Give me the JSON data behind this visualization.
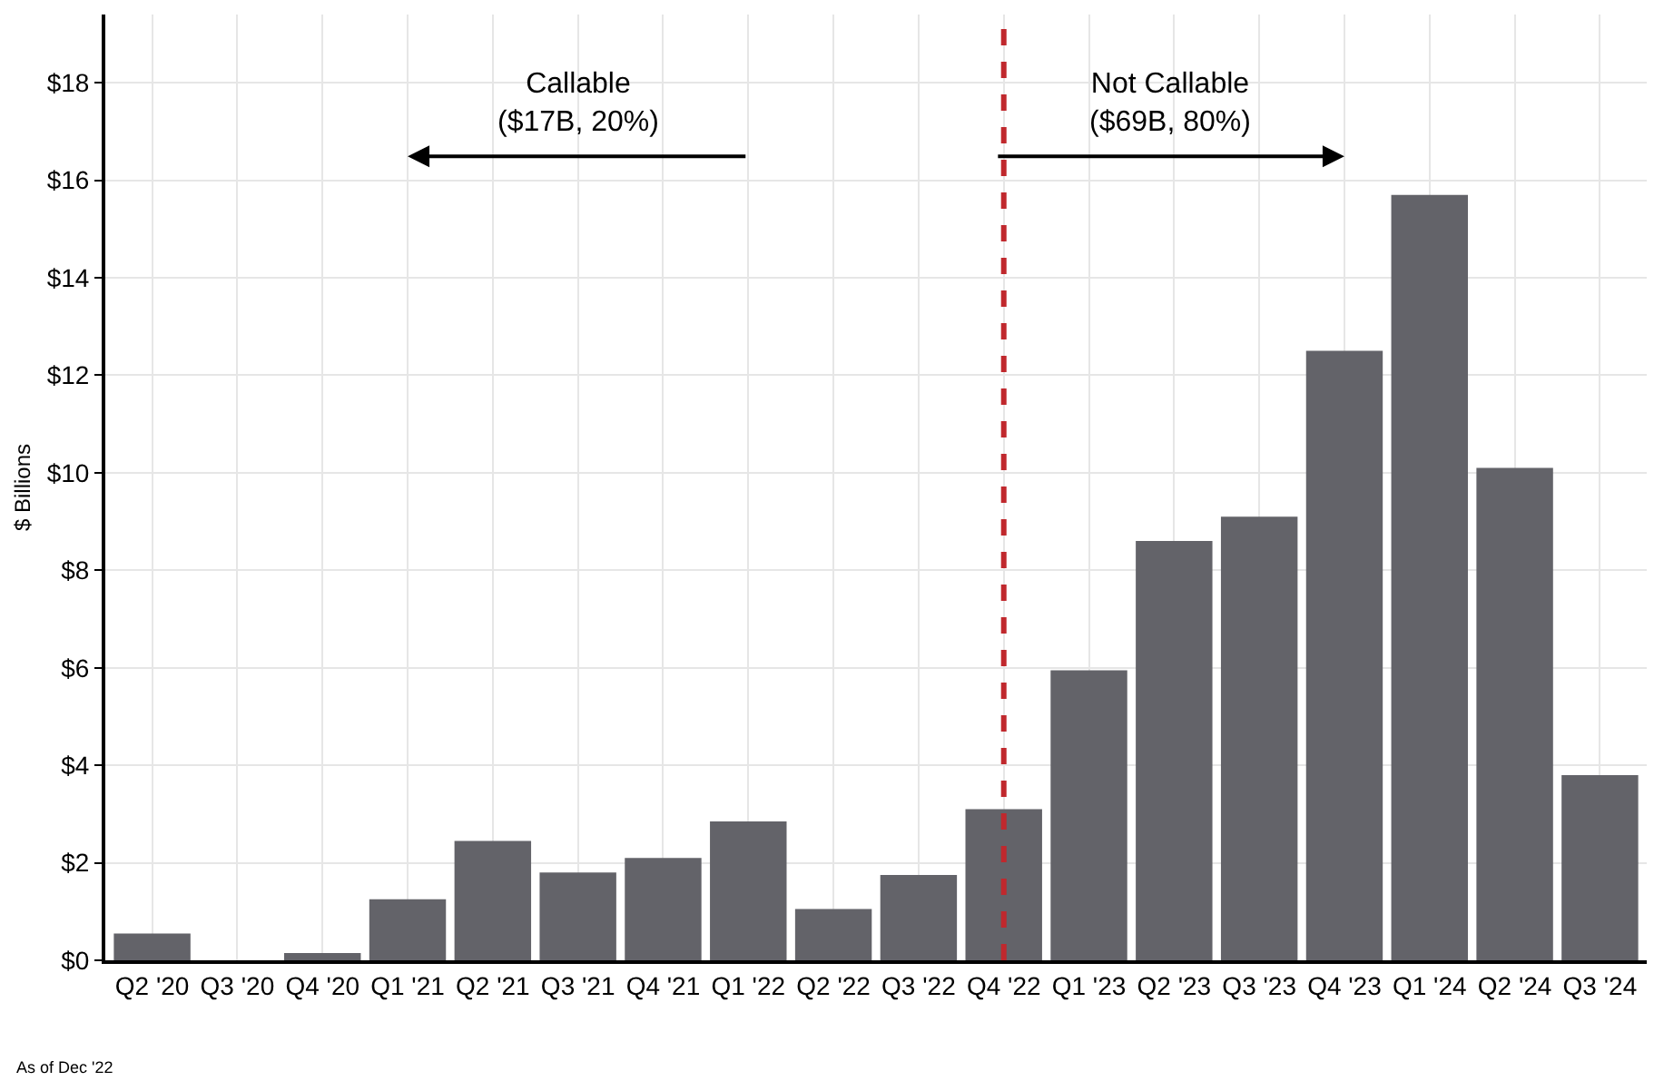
{
  "chart_data": {
    "type": "bar",
    "ylabel": "$ Billions",
    "categories": [
      "Q2 '20",
      "Q3 '20",
      "Q4 '20",
      "Q1 '21",
      "Q2 '21",
      "Q3 '21",
      "Q4 '21",
      "Q1 '22",
      "Q2 '22",
      "Q3 '22",
      "Q4 '22",
      "Q1 '23",
      "Q2 '23",
      "Q3 '23",
      "Q4 '23",
      "Q1 '24",
      "Q2 '24",
      "Q3 '24"
    ],
    "values": [
      0.55,
      0,
      0.15,
      1.25,
      2.45,
      1.8,
      2.1,
      2.85,
      1.05,
      1.75,
      3.1,
      5.95,
      8.6,
      9.1,
      12.5,
      15.7,
      10.1,
      3.8
    ],
    "color": "#636369",
    "ylim": [
      0,
      19.4
    ],
    "yticks": [
      {
        "value": 0,
        "label": "$0"
      },
      {
        "value": 2,
        "label": "$2"
      },
      {
        "value": 4,
        "label": "$4"
      },
      {
        "value": 6,
        "label": "$6"
      },
      {
        "value": 8,
        "label": "$8"
      },
      {
        "value": 10,
        "label": "$10"
      },
      {
        "value": 12,
        "label": "$12"
      },
      {
        "value": 14,
        "label": "$14"
      },
      {
        "value": 16,
        "label": "$16"
      },
      {
        "value": 18,
        "label": "$18"
      }
    ],
    "grid": true,
    "ref_lines": [
      {
        "axis": "x",
        "value": "Q4 '22",
        "color": "#c0282d",
        "line_style": "dashed"
      }
    ],
    "annotations": [
      "Callable\n($17B, 20%)",
      "Not Callable\n($69B, 80%)",
      "As of Dec '22"
    ]
  }
}
